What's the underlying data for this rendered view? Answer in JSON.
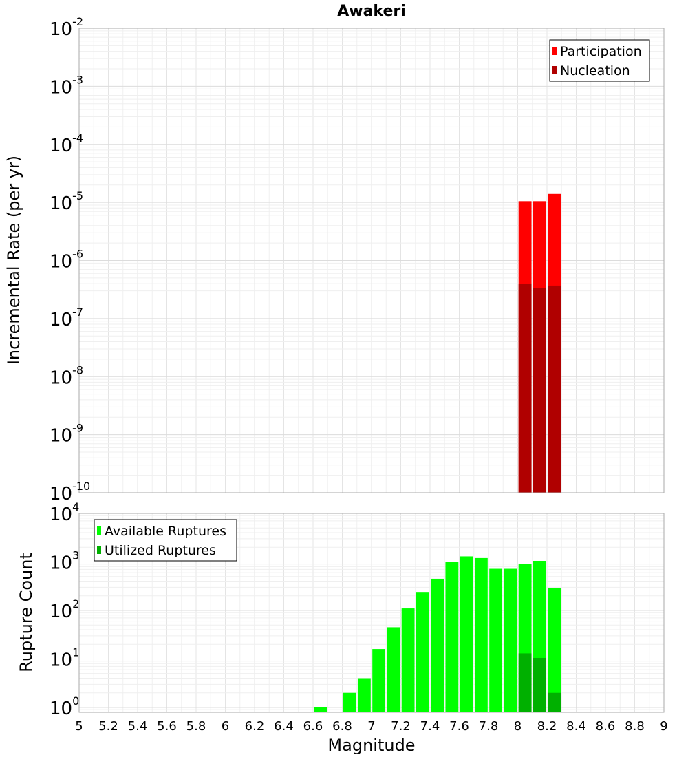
{
  "chart_data": {
    "title": "Awakeri",
    "xlabel": "Magnitude",
    "xlim": [
      5,
      9
    ],
    "x_ticks": [
      "5",
      "5.2",
      "5.4",
      "5.6",
      "5.8",
      "6",
      "6.2",
      "6.4",
      "6.6",
      "6.8",
      "7",
      "7.2",
      "7.4",
      "7.6",
      "7.8",
      "8",
      "8.2",
      "8.4",
      "8.6",
      "8.8",
      "9"
    ],
    "bin_width": 0.1,
    "panels": [
      {
        "type": "bar",
        "scale": "log",
        "ylabel": "Incremental Rate (per yr)",
        "ylim_exp": [
          -10,
          -2
        ],
        "y_ticks": [
          {
            "base": "10",
            "exp": "-2"
          },
          {
            "base": "10",
            "exp": "-3"
          },
          {
            "base": "10",
            "exp": "-4"
          },
          {
            "base": "10",
            "exp": "-5"
          },
          {
            "base": "10",
            "exp": "-6"
          },
          {
            "base": "10",
            "exp": "-7"
          },
          {
            "base": "10",
            "exp": "-8"
          },
          {
            "base": "10",
            "exp": "-9"
          },
          {
            "base": "10",
            "exp": "-10"
          }
        ],
        "legend_position": "top-right",
        "series": [
          {
            "name": "Participation",
            "color": "#ff0000",
            "x": [
              8.05,
              8.15,
              8.25
            ],
            "values": [
              1.05e-05,
              1.05e-05,
              1.4e-05
            ]
          },
          {
            "name": "Nucleation",
            "color": "#b00000",
            "x": [
              8.05,
              8.15,
              8.25
            ],
            "values": [
              4e-07,
              3.4e-07,
              3.7e-07
            ]
          }
        ]
      },
      {
        "type": "bar",
        "scale": "log",
        "ylabel": "Rupture Count",
        "ylim_exp": [
          -0.1,
          4
        ],
        "y_ticks": [
          {
            "base": "10",
            "exp": "4"
          },
          {
            "base": "10",
            "exp": "3"
          },
          {
            "base": "10",
            "exp": "2"
          },
          {
            "base": "10",
            "exp": "1"
          },
          {
            "base": "10",
            "exp": "0"
          }
        ],
        "legend_position": "top-left",
        "series": [
          {
            "name": "Available Ruptures",
            "color": "#00ff00",
            "x": [
              6.65,
              6.85,
              6.95,
              7.05,
              7.15,
              7.25,
              7.35,
              7.45,
              7.55,
              7.65,
              7.75,
              7.85,
              7.95,
              8.05,
              8.15,
              8.25
            ],
            "values": [
              1,
              2,
              4,
              16,
              45,
              110,
              240,
              450,
              1000,
              1300,
              1200,
              720,
              720,
              900,
              1050,
              290
            ]
          },
          {
            "name": "Utilized Ruptures",
            "color": "#00b000",
            "x": [
              8.05,
              8.15,
              8.25
            ],
            "values": [
              13,
              10.5,
              2
            ]
          }
        ]
      }
    ]
  }
}
